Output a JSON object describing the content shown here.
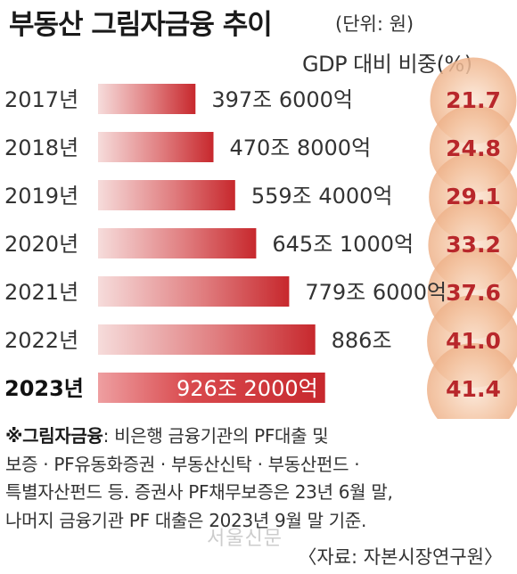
{
  "title": "부동산 그림자금융 추이",
  "unit": "(단위: 원)",
  "ratio_header": "GDP 대비 비중(%)",
  "chart_data": {
    "type": "bar",
    "orientation": "horizontal",
    "title": "부동산 그림자금융 추이",
    "unit": "원",
    "categories": [
      "2017년",
      "2018년",
      "2019년",
      "2020년",
      "2021년",
      "2022년",
      "2023년"
    ],
    "values_trillion_won": [
      397.6,
      470.8,
      559.4,
      645.1,
      779.6,
      886.0,
      926.2
    ],
    "value_labels": [
      "397조 6000억",
      "470조 8000억",
      "559조 4000억",
      "645조 1000억",
      "779조 6000억",
      "886조",
      "926조 2000억"
    ],
    "gdp_ratio_percent": [
      21.7,
      24.8,
      29.1,
      33.2,
      37.6,
      41.0,
      41.4
    ],
    "gdp_ratio_labels": [
      "21.7",
      "24.8",
      "29.1",
      "33.2",
      "37.6",
      "41.0",
      "41.4"
    ],
    "highlight_index": 6,
    "colors": {
      "bar_dark": "#c7282d",
      "bar_light": "#f6dcdb",
      "circle": "#f3c29f",
      "ratio_text": "#b8272b"
    }
  },
  "footnote": {
    "term": "※그림자금융",
    "lines": [
      ": 비은행 금융기관의 PF대출 및",
      "보증 · PF유동화증권 · 부동산신탁 · 부동산펀드 ·",
      "특별자산펀드 등. 증권사 PF채무보증은 23년 6월 말,",
      "나머지 금융기관 PF 대출은 2023년 9월 말 기준."
    ]
  },
  "source": "〈자료: 자본시장연구원〉",
  "watermark": "서울신문"
}
